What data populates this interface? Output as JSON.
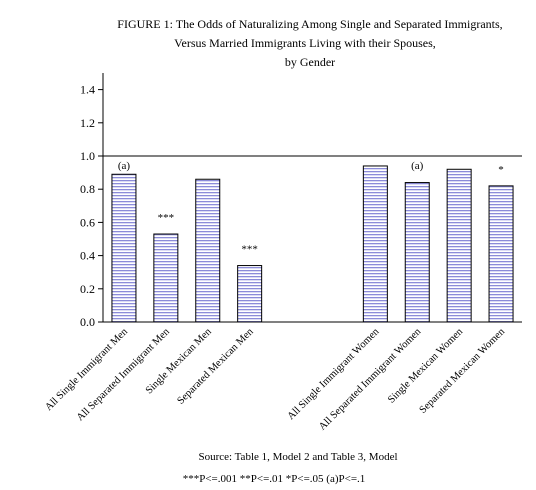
{
  "chart_data": {
    "type": "bar",
    "title_lines": [
      "FIGURE 1: The Odds of Naturalizing Among Single and Separated Immigrants,",
      "Versus Married Immigrants Living with their Spouses,",
      "by Gender"
    ],
    "xlabel": "",
    "ylabel": "",
    "ylim": [
      0,
      1.5
    ],
    "yticks": [
      "0.0",
      "0.2",
      "0.4",
      "0.6",
      "0.8",
      "1.0",
      "1.2",
      "1.4"
    ],
    "reference_line": 1.0,
    "grid": false,
    "legend": "none",
    "bar_color": "#8c8cd9",
    "bars": [
      {
        "category": "All Single Immigrant Men",
        "value": 0.89,
        "sig": "(a)"
      },
      {
        "category": "All Separated Immigrant Men",
        "value": 0.53,
        "sig": "***"
      },
      {
        "category": "Single Mexican Men",
        "value": 0.86,
        "sig": ""
      },
      {
        "category": "Separated Mexican Men",
        "value": 0.34,
        "sig": "***"
      },
      {
        "category": "All Single Immigrant Women",
        "value": 0.94,
        "sig": ""
      },
      {
        "category": "All Separated Immigrant Women",
        "value": 0.84,
        "sig": "(a)"
      },
      {
        "category": "Single Mexican Women",
        "value": 0.92,
        "sig": ""
      },
      {
        "category": "Separated Mexican Women",
        "value": 0.82,
        "sig": "*"
      }
    ]
  },
  "footer": {
    "source": "Source: Table 1, Model 2 and Table 3, Model",
    "notes": "***P<=.001 **P<=.01 *P<=.05 (a)P<=.1"
  }
}
